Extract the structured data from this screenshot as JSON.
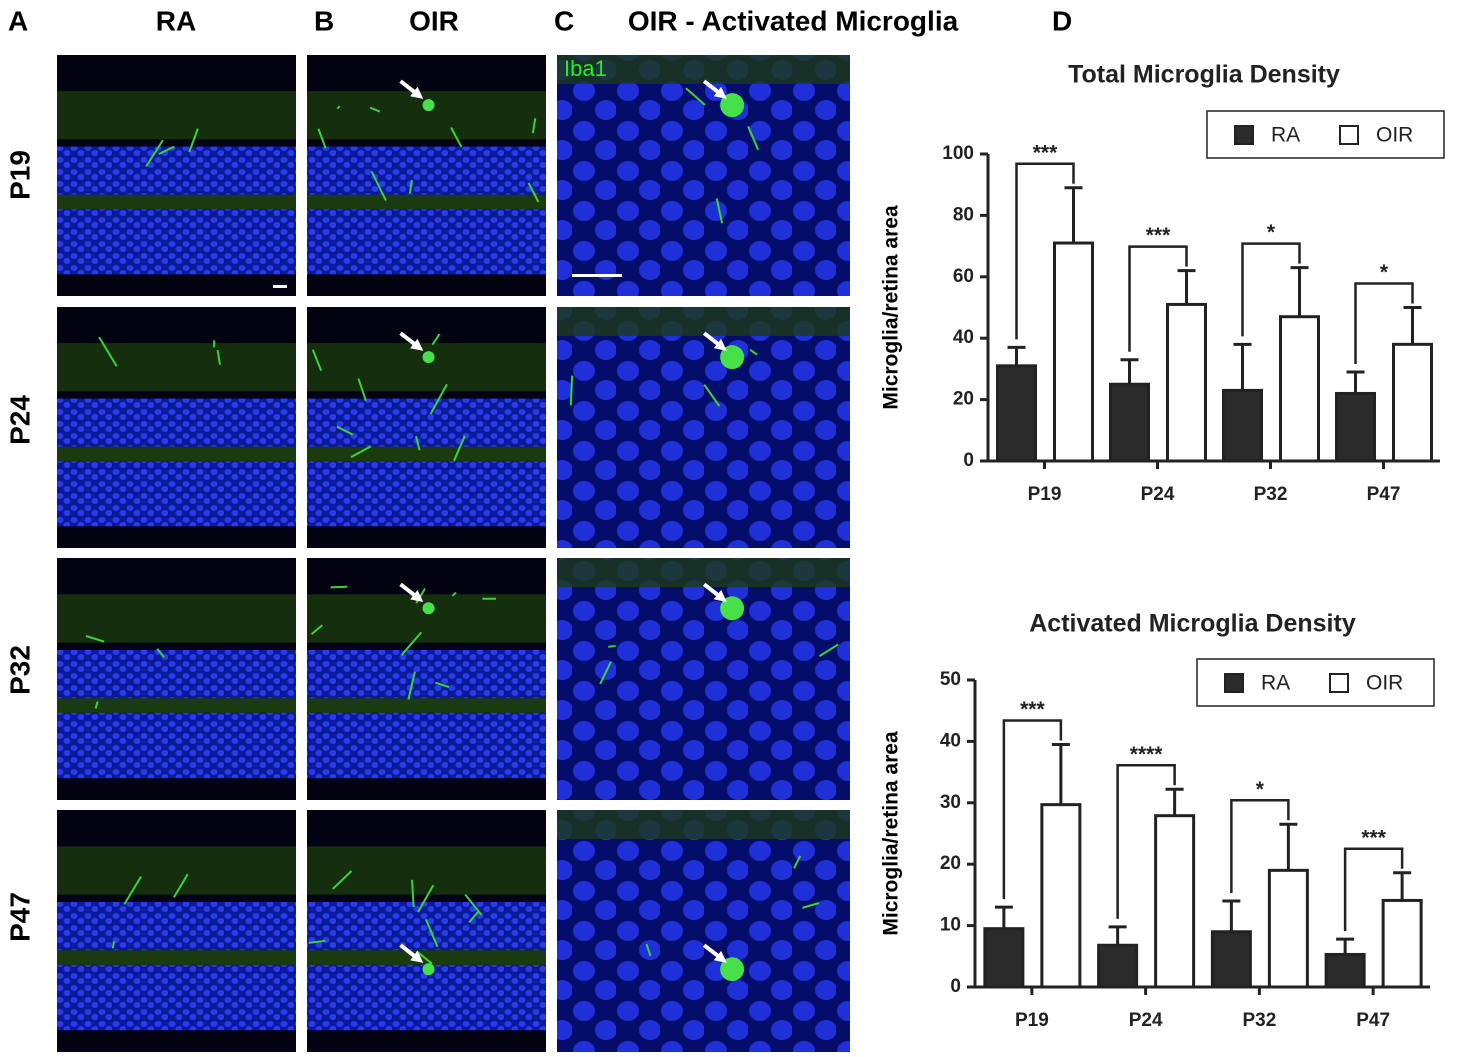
{
  "figure": {
    "panel_labels": [
      "A",
      "B",
      "C",
      "D"
    ],
    "column_headers": [
      "RA",
      "OIR",
      "OIR - Activated Microglia"
    ],
    "row_labels": [
      "P19",
      "P24",
      "P32",
      "P47"
    ],
    "stain_label": "Iba1"
  },
  "chart_data": [
    {
      "type": "bar",
      "title": "Total Microglia Density",
      "y_label": "Microglia/retina area",
      "categories": [
        "P19",
        "P24",
        "P32",
        "P47"
      ],
      "series": [
        {
          "name": "RA",
          "color": "#2b2b2b",
          "values": [
            31,
            25,
            23,
            22
          ],
          "errors": [
            6,
            8,
            15,
            7
          ]
        },
        {
          "name": "OIR",
          "color": "#ffffff",
          "values": [
            71,
            51,
            47,
            38
          ],
          "errors": [
            18,
            11,
            16,
            12
          ]
        }
      ],
      "annotations": [
        "***",
        "***",
        "*",
        "*"
      ],
      "ylim": [
        0,
        100
      ],
      "yticks": [
        0,
        20,
        40,
        60,
        80,
        100
      ],
      "legend": "top-right"
    },
    {
      "type": "bar",
      "title": "Activated Microglia Density",
      "y_label": "Microglia/retina area",
      "categories": [
        "P19",
        "P24",
        "P32",
        "P47"
      ],
      "series": [
        {
          "name": "RA",
          "color": "#2b2b2b",
          "values": [
            9.5,
            6.8,
            9,
            5.3
          ],
          "errors": [
            3.5,
            3,
            5,
            2.5
          ]
        },
        {
          "name": "OIR",
          "color": "#ffffff",
          "values": [
            29.7,
            27.9,
            19,
            14.1
          ],
          "errors": [
            9.8,
            4.3,
            7.5,
            4.5
          ]
        }
      ],
      "annotations": [
        "***",
        "****",
        "*",
        "***"
      ],
      "ylim": [
        0,
        50
      ],
      "yticks": [
        0,
        10,
        20,
        30,
        40,
        50
      ],
      "legend": "top-right"
    }
  ]
}
